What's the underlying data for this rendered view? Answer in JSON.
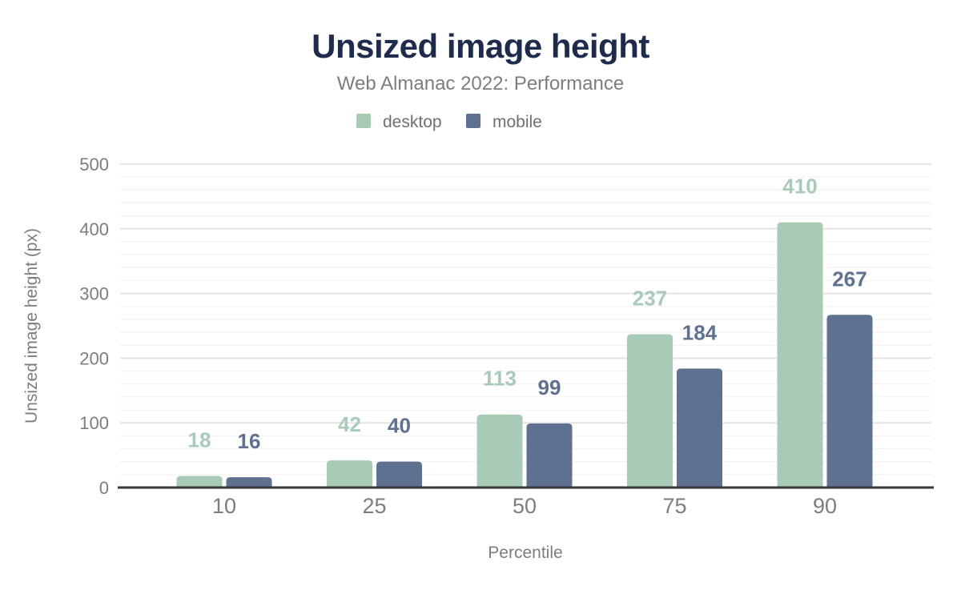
{
  "chart_data": {
    "type": "bar",
    "title": "Unsized image height",
    "subtitle": "Web Almanac 2022: Performance",
    "xlabel": "Percentile",
    "ylabel": "Unsized image height (px)",
    "categories": [
      "10",
      "25",
      "50",
      "75",
      "90"
    ],
    "series": [
      {
        "name": "desktop",
        "color": "#a8cbb8",
        "values": [
          18,
          42,
          113,
          237,
          410
        ]
      },
      {
        "name": "mobile",
        "color": "#5f7191",
        "values": [
          16,
          40,
          99,
          184,
          267
        ]
      }
    ],
    "ylim": [
      0,
      500
    ],
    "y_major_ticks": [
      0,
      100,
      200,
      300,
      400,
      500
    ],
    "y_minor_step": 20,
    "grid": true,
    "legend_position": "top-center",
    "value_labels": true
  },
  "colors": {
    "title": "#1e2b4d",
    "axis_text": "#7d7d7d",
    "axis_line": "#383838",
    "grid_major": "#e4e4e4",
    "grid_minor": "#f4f4f4",
    "desktop": "#a8cbb8",
    "mobile": "#5f7191",
    "background": "#ffffff"
  }
}
